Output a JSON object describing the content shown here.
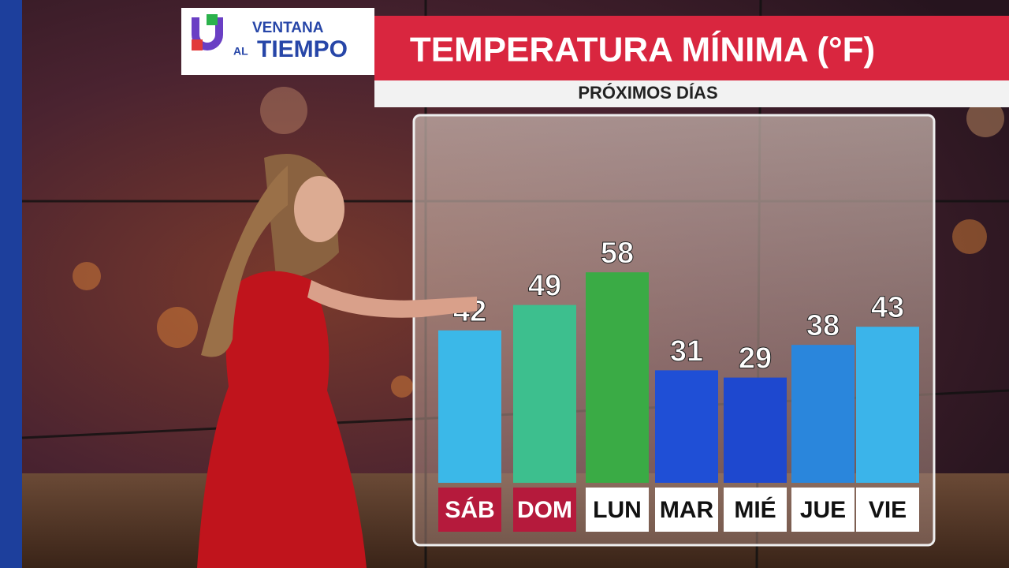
{
  "logo": {
    "line1": "VENTANA",
    "line2a": "AL",
    "line2b": "TIEMPO"
  },
  "chart_data": {
    "type": "bar",
    "title": "TEMPERATURA MÍNIMA (°F)",
    "subtitle": "PRÓXIMOS DÍAS",
    "categories": [
      "SÁB",
      "DOM",
      "LUN",
      "MAR",
      "MIÉ",
      "JUE",
      "VIE"
    ],
    "values": [
      42,
      49,
      58,
      31,
      29,
      38,
      43
    ],
    "colors": [
      "#3bb8e8",
      "#3dbf8e",
      "#3aab45",
      "#1f4fd6",
      "#1e48cf",
      "#2a86dc",
      "#3bb4ea"
    ],
    "label_backgrounds": [
      "#b51a3c",
      "#b51a3c",
      "#ffffff",
      "#ffffff",
      "#ffffff",
      "#ffffff",
      "#ffffff"
    ],
    "label_colors": [
      "#ffffff",
      "#ffffff",
      "#111111",
      "#111111",
      "#111111",
      "#111111",
      "#111111"
    ]
  }
}
